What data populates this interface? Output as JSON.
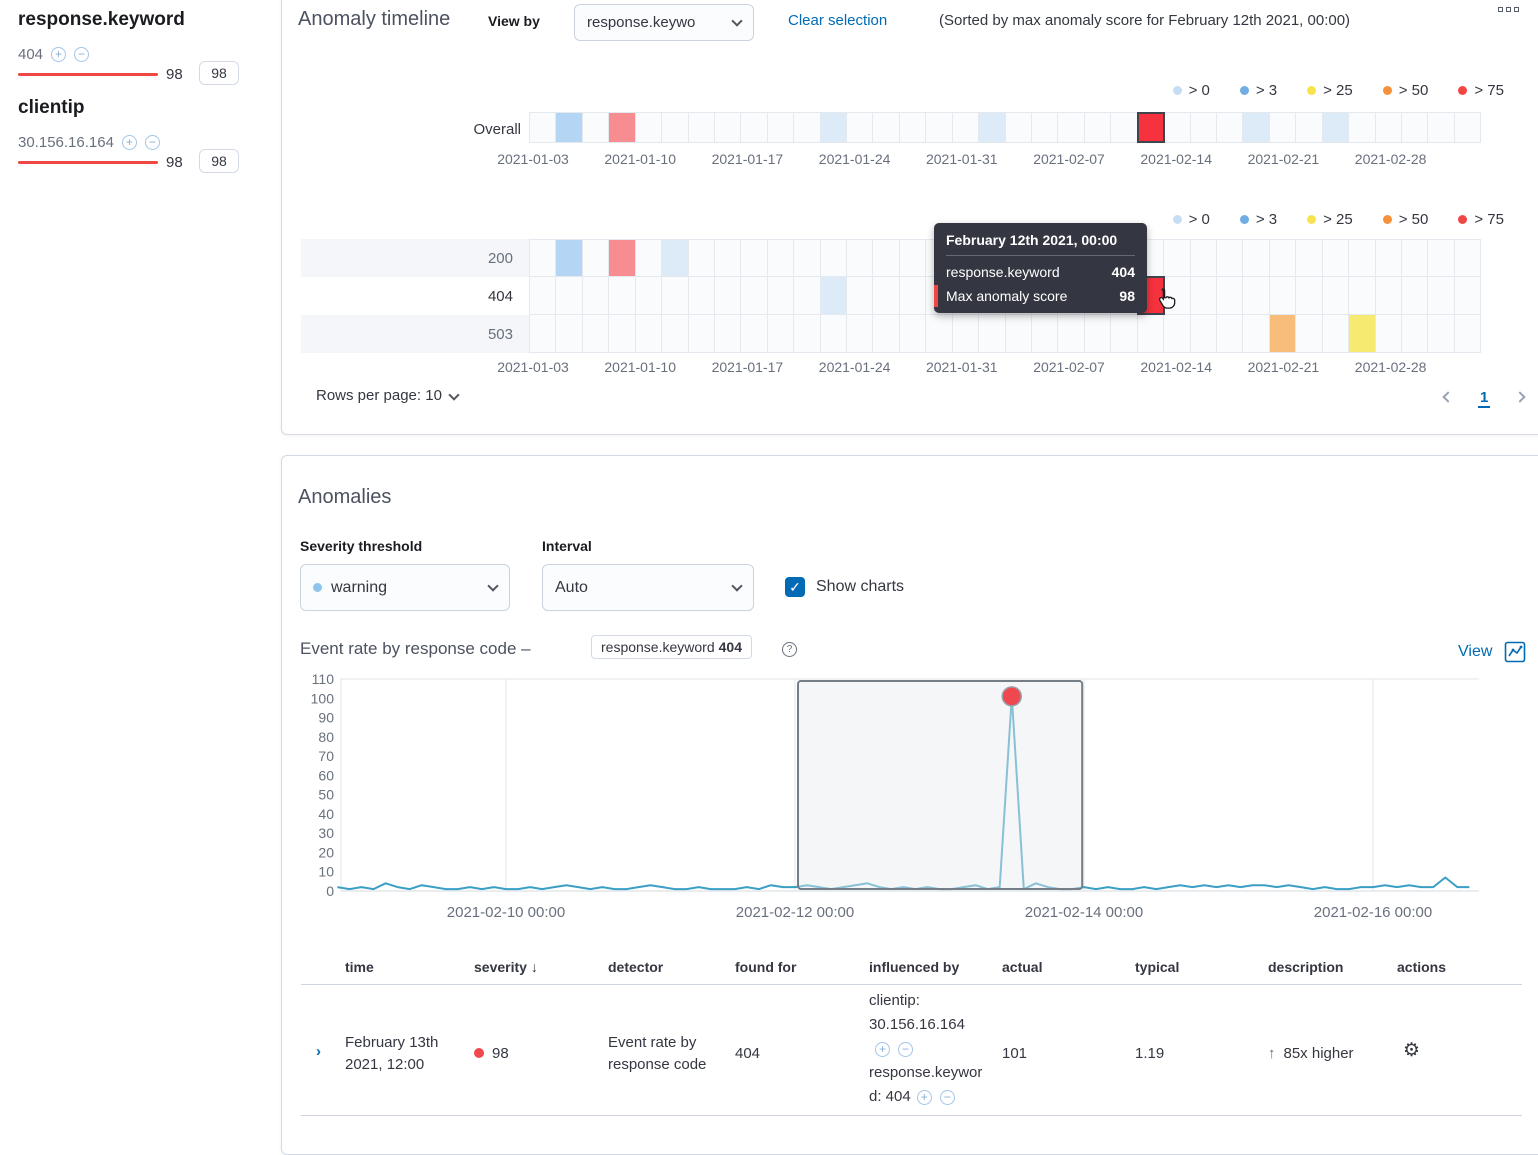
{
  "icons": {
    "plus": "+",
    "minus": "−",
    "gear": "⚙",
    "check": "✓",
    "question": "?",
    "arrow_up": "↑",
    "sort_down": "↓"
  },
  "sidebar": {
    "groups": [
      {
        "title": "response.keyword",
        "item": "404",
        "score_text": "98",
        "badge": "98"
      },
      {
        "title": "clientip",
        "item": "30.156.16.164",
        "score_text": "98",
        "badge": "98"
      }
    ]
  },
  "timeline": {
    "title": "Anomaly timeline",
    "view_by_label": "View by",
    "view_by_value": "response.keywo",
    "clear_selection": "Clear selection",
    "sorted_note": "(Sorted by max anomaly score for February 12th 2021, 00:00)",
    "legend": [
      {
        "label": "> 0",
        "color": "#c6ddf3"
      },
      {
        "label": "> 3",
        "color": "#6fade4"
      },
      {
        "label": "> 25",
        "color": "#f7e34d"
      },
      {
        "label": "> 50",
        "color": "#f59139"
      },
      {
        "label": "> 75",
        "color": "#f04744"
      }
    ],
    "axis_labels": [
      "2021-01-03",
      "2021-01-10",
      "2021-01-17",
      "2021-01-24",
      "2021-01-31",
      "2021-02-07",
      "2021-02-14",
      "2021-02-21",
      "2021-02-28"
    ],
    "num_cells": 36,
    "selected_color": "#f5323e",
    "overall": {
      "label": "Overall",
      "cells": {
        "1": "#b5d5f4",
        "3": "#f78d90",
        "11": "#dcebf7",
        "17": "#dcebf7",
        "27": "#dcebf7",
        "30": "#dcebf7"
      },
      "selected_index": 23
    },
    "rows": [
      {
        "label": "200",
        "cells": {
          "1": "#b5d5f4",
          "3": "#f78d90",
          "5": "#dcebf7"
        }
      },
      {
        "label": "404",
        "cells": {
          "11": "#dcebf7"
        },
        "selected_index": 23
      },
      {
        "label": "503",
        "cells": {
          "28": "#f8bd7a",
          "31": "#f7ea70"
        }
      }
    ],
    "tooltip": {
      "header": "February 12th 2021, 00:00",
      "rows": [
        {
          "label": "response.keyword",
          "value": "404"
        },
        {
          "label": "Max anomaly score",
          "value": "98",
          "marker": "#f04744"
        }
      ]
    },
    "rows_per_page": "Rows per page: 10",
    "page": "1"
  },
  "anomalies": {
    "title": "Anomalies",
    "severity_label": "Severity threshold",
    "severity_value": "warning",
    "severity_dot_color": "#8fc5ec",
    "interval_label": "Interval",
    "interval_value": "Auto",
    "show_charts_label": "Show charts",
    "chart_title": "Event rate by response code –",
    "chart_badge_field": "response.keyword",
    "chart_badge_value": "404",
    "view_label": "View"
  },
  "chart_data": {
    "type": "line",
    "title": "Event rate by response code",
    "series_name": "response.keyword 404",
    "line_color": "#3a9fc4",
    "ylim": [
      0,
      110
    ],
    "y_ticks": [
      0,
      10,
      20,
      30,
      40,
      50,
      60,
      70,
      80,
      90,
      100,
      110
    ],
    "x_ticks": [
      {
        "t": 24,
        "label": "2021-02-10 00:00"
      },
      {
        "t": 72,
        "label": "2021-02-12 00:00"
      },
      {
        "t": 120,
        "label": "2021-02-14 00:00"
      },
      {
        "t": 168,
        "label": "2021-02-16 00:00"
      }
    ],
    "t_start": -4,
    "t_step": 2,
    "values": [
      2,
      1,
      2,
      1,
      4,
      2,
      1,
      3,
      2,
      1,
      1,
      2,
      1,
      2,
      1,
      1,
      2,
      1,
      2,
      3,
      2,
      1,
      2,
      1,
      1,
      2,
      3,
      2,
      1,
      1,
      2,
      1,
      1,
      1,
      2,
      1,
      3,
      2,
      2,
      3,
      2,
      1,
      2,
      3,
      4,
      2,
      1,
      2,
      1,
      2,
      1,
      1,
      2,
      3,
      1,
      2,
      101,
      1,
      4,
      2,
      1,
      1,
      2,
      1,
      2,
      1,
      1,
      2,
      1,
      2,
      3,
      2,
      3,
      2,
      3,
      2,
      3,
      3,
      2,
      3,
      2,
      1,
      2,
      1,
      1,
      2,
      2,
      3,
      2,
      3,
      2,
      2,
      7,
      2,
      2
    ],
    "selection_band": {
      "t0": 72.5,
      "t1": 119.7
    },
    "anomaly_point": {
      "t": 108,
      "v": 101,
      "color": "#f0484f"
    },
    "grid": "vertical-at-ticks",
    "legend_position": "none"
  },
  "table": {
    "headers": [
      "time",
      "severity",
      "detector",
      "found for",
      "influenced by",
      "actual",
      "typical",
      "description",
      "actions"
    ],
    "sorted_by": "severity",
    "row": {
      "time": [
        "February 13th",
        "2021, 12:00"
      ],
      "severity": "98",
      "severity_color": "#f0484f",
      "detector": [
        "Event rate by",
        "response code"
      ],
      "found_for": "404",
      "influenced_by": [
        {
          "text": "clientip:"
        },
        {
          "text": "30.156.16.164"
        },
        {
          "text": "",
          "icons": true
        },
        {
          "text": "response.keywor"
        },
        {
          "text": "d: 404",
          "icons": true
        }
      ],
      "actual": "101",
      "typical": "1.19",
      "description": "85x higher"
    }
  }
}
